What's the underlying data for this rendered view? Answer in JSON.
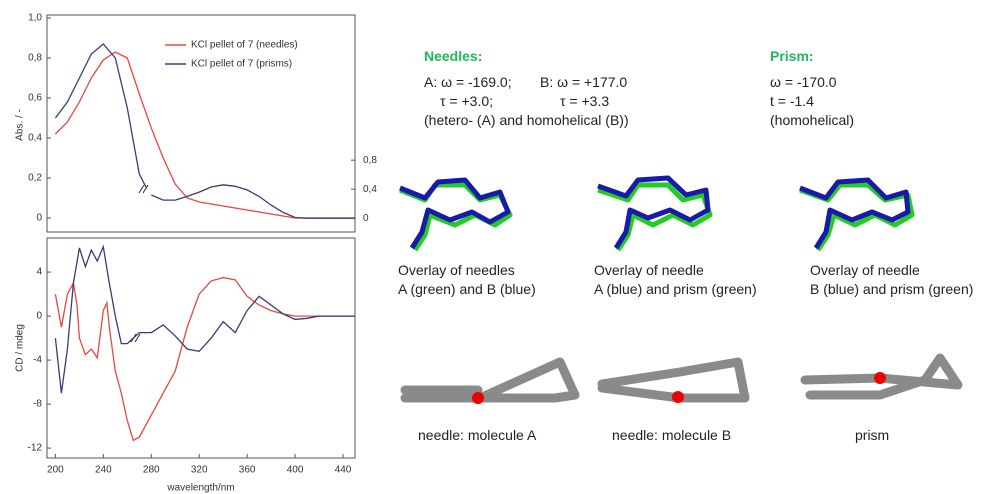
{
  "chart_data": [
    {
      "type": "line",
      "ylabel": "Abs. / -",
      "xlim": [
        193,
        450
      ],
      "ylim": [
        -0.07,
        1.015
      ],
      "yticks": [
        0,
        {
          "value": 0.2,
          "label": "0,2"
        },
        {
          "value": 0.4,
          "label": "0,4"
        },
        {
          "value": 0.6,
          "label": "0,6"
        },
        {
          "value": 0.8,
          "label": "0,8"
        },
        {
          "value": 1.0,
          "label": "1,0"
        }
      ],
      "y2lim": [
        -0.19,
        2.8
      ],
      "y2ticks": [
        0,
        {
          "value": 0.4,
          "label": "0,4"
        },
        {
          "value": 0.8,
          "label": "0,8"
        }
      ],
      "series": [
        {
          "name": "KCl pellet of 7 (needles)",
          "color": "#e8473f",
          "x": [
            200,
            210,
            220,
            230,
            240,
            250,
            260,
            270,
            280,
            290,
            300,
            310,
            320,
            330,
            340,
            350,
            360,
            370,
            380,
            390,
            400,
            410,
            420,
            430,
            440,
            450
          ],
          "values": [
            0.42,
            0.48,
            0.58,
            0.7,
            0.79,
            0.83,
            0.8,
            0.62,
            0.45,
            0.3,
            0.17,
            0.1,
            0.08,
            0.07,
            0.06,
            0.05,
            0.04,
            0.03,
            0.02,
            0.01,
            0,
            0,
            0,
            0,
            0,
            0
          ]
        },
        {
          "name": "KCl pellet of 7 (prisms)",
          "color": "#3b3a7a",
          "x": [
            200,
            210,
            220,
            230,
            240,
            250,
            260,
            270,
            276
          ],
          "values": [
            0.5,
            0.58,
            0.7,
            0.82,
            0.87,
            0.8,
            0.55,
            0.22,
            0.15
          ]
        },
        {
          "color": "#3b3a7a",
          "axis": "y2",
          "x": [
            280,
            290,
            300,
            310,
            320,
            330,
            340,
            350,
            360,
            370,
            380,
            390,
            400,
            410,
            420,
            430,
            440,
            450
          ],
          "values": [
            0.32,
            0.25,
            0.25,
            0.3,
            0.36,
            0.43,
            0.46,
            0.44,
            0.39,
            0.3,
            0.18,
            0.08,
            0.01,
            0,
            0,
            0,
            0,
            0
          ]
        }
      ]
    },
    {
      "type": "line",
      "ylabel": "CD / mdeg",
      "xlabel": "wavelength/nm",
      "xlim": [
        193,
        450
      ],
      "xticks": [
        200,
        240,
        280,
        320,
        360,
        400,
        440
      ],
      "ylim": [
        -12.9,
        7.1
      ],
      "yticks": [
        -12,
        -8,
        -4,
        0,
        4
      ],
      "series": [
        {
          "color": "#e8473f",
          "x": [
            200,
            205,
            210,
            215,
            218,
            220,
            225,
            230,
            235,
            240,
            243,
            245,
            250,
            255,
            260,
            265,
            270,
            280,
            290,
            300,
            310,
            320,
            330,
            340,
            350,
            360,
            370,
            380,
            390,
            400,
            450
          ],
          "values": [
            2,
            -1,
            2,
            3,
            1,
            -2,
            -3.5,
            -3,
            -3.8,
            0.5,
            1.2,
            -1,
            -5,
            -7,
            -9.5,
            -11.3,
            -11,
            -9,
            -7,
            -5,
            -1,
            2,
            3.2,
            3.5,
            3.3,
            1.8,
            1,
            0.5,
            0.2,
            0,
            0
          ]
        },
        {
          "color": "#3b3a7a",
          "x": [
            200,
            205,
            210,
            215,
            220,
            225,
            230,
            235,
            240,
            245,
            250,
            255,
            260,
            265,
            270,
            280,
            290,
            300,
            310,
            320,
            330,
            340,
            350,
            360,
            370,
            380,
            390,
            400,
            410,
            420,
            450
          ],
          "values": [
            -2,
            -7,
            -3,
            3,
            6.2,
            4.5,
            6,
            5,
            6.3,
            3,
            0,
            -2.5,
            -2.5,
            -2,
            -1.5,
            -1.5,
            -0.8,
            -1.8,
            -3,
            -3.2,
            -2,
            -0.5,
            -1.5,
            0.5,
            1.8,
            1,
            0.2,
            -0.3,
            -0.2,
            0,
            0
          ]
        }
      ]
    }
  ],
  "panel": {
    "needles": {
      "title": "Needles:",
      "a_omega": "A: ω = -169.0;",
      "b_omega": "B: ω = +177.0",
      "a_tau": "τ = +3.0;",
      "b_tau": "τ = +3.3",
      "note": "(hetero- (A) and homohelical (B))"
    },
    "prism": {
      "title": "Prism:",
      "omega": "ω  = -170.0",
      "tau": "t  = -1.4",
      "note": "(homohelical)"
    },
    "overlays": [
      [
        "Overlay of needles",
        "A (green) and B (blue)"
      ],
      [
        "Overlay of needle",
        "A (blue) and prism (green)"
      ],
      [
        "Overlay of needle",
        "B (blue) and prism (green)"
      ]
    ],
    "molecules": [
      "needle: molecule A",
      "needle: molecule B",
      "prism"
    ]
  }
}
